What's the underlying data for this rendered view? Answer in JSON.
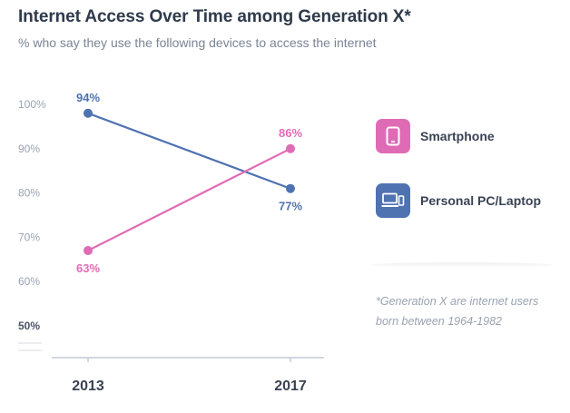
{
  "title": "Internet Access Over Time among Generation X*",
  "subtitle": "% who say they use the following devices to access the internet",
  "footnote": "*Generation X are internet users born between 1964-1982",
  "legend": [
    {
      "label": "Smartphone",
      "icon": "smartphone-icon",
      "color": "#e06bb5"
    },
    {
      "label": "Personal PC/Laptop",
      "icon": "laptop-icon",
      "color": "#4f72b1"
    }
  ],
  "chart_data": {
    "type": "line",
    "x": [
      "2013",
      "2017"
    ],
    "y_ticks": [
      "100%",
      "90%",
      "80%",
      "70%",
      "60%",
      "50%"
    ],
    "ylim": [
      50,
      100
    ],
    "grid": false,
    "legend_position": "right",
    "series": [
      {
        "name": "Personal PC/Laptop",
        "values": [
          94,
          77
        ],
        "labels": [
          "94%",
          "77%"
        ],
        "plot_values": [
          98,
          81
        ],
        "color": "#4f72b1"
      },
      {
        "name": "Smartphone",
        "values": [
          63,
          86
        ],
        "labels": [
          "63%",
          "86%"
        ],
        "plot_values": [
          67,
          90
        ],
        "color": "#e06bb5"
      }
    ]
  }
}
